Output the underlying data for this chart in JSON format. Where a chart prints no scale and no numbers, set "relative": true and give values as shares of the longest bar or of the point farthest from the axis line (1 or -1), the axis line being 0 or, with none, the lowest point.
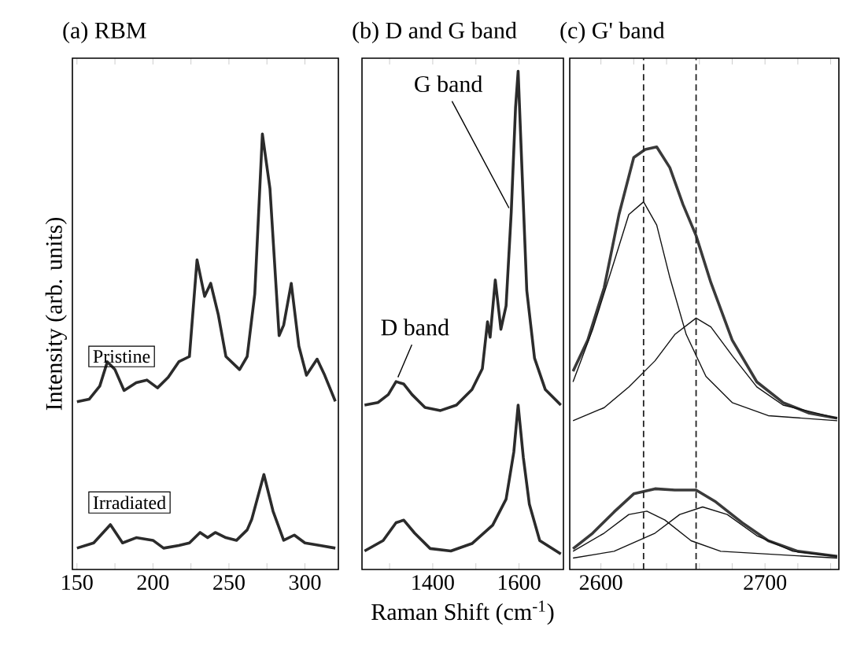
{
  "chart_data": [
    {
      "type": "line",
      "title": "(a) RBM",
      "ylabel": "Intensity (arb. units)",
      "relative": true,
      "xlim": [
        147,
        322
      ],
      "xticks": [
        150,
        {
          "value": 175,
          "label": null
        },
        200,
        {
          "value": 225,
          "label": null
        },
        250,
        {
          "value": 275,
          "label": null
        },
        300
      ],
      "series": [
        {
          "name": "Pristine",
          "color": "#2b2b2b",
          "x": [
            150,
            158,
            165,
            170,
            175,
            181,
            189,
            196,
            203,
            210,
            217,
            224,
            229,
            234,
            238,
            243,
            248,
            257,
            262,
            267,
            272,
            277,
            283,
            286,
            291,
            296,
            301,
            308,
            313,
            320
          ],
          "values": [
            0.385,
            0.391,
            0.421,
            0.477,
            0.459,
            0.411,
            0.429,
            0.435,
            0.417,
            0.441,
            0.477,
            0.489,
            0.711,
            0.627,
            0.657,
            0.585,
            0.489,
            0.459,
            0.489,
            0.633,
            1.0,
            0.874,
            0.537,
            0.561,
            0.657,
            0.513,
            0.446,
            0.483,
            0.446,
            0.386
          ]
        },
        {
          "name": "Irradiated",
          "color": "#2b2b2b",
          "x": [
            150,
            161,
            172,
            180,
            189,
            200,
            207,
            217,
            224,
            231,
            236,
            241,
            248,
            255,
            262,
            265,
            273,
            279,
            286,
            293,
            300,
            310,
            320
          ],
          "values": [
            0.049,
            0.061,
            0.103,
            0.061,
            0.073,
            0.067,
            0.049,
            0.055,
            0.061,
            0.085,
            0.073,
            0.085,
            0.073,
            0.067,
            0.091,
            0.115,
            0.218,
            0.134,
            0.067,
            0.079,
            0.061,
            0.055,
            0.049
          ]
        }
      ]
    },
    {
      "type": "line",
      "title": "(b) D and G band",
      "xlabel": "Raman Shift (cm$^{-1}$)",
      "relative": true,
      "xlim": [
        1236,
        1703
      ],
      "xticks": [
        {
          "value": 1300,
          "label": null
        },
        1400,
        {
          "value": 1500,
          "label": null
        },
        1600
      ],
      "annotations": [
        {
          "text": "D band",
          "x": 1315,
          "y": 0.377
        },
        {
          "text": "G band",
          "x": 1582,
          "y": 0.717
        }
      ],
      "series": [
        {
          "color": "#2b2b2b",
          "x": [
            1242,
            1273,
            1297,
            1315,
            1333,
            1352,
            1382,
            1418,
            1455,
            1491,
            1515,
            1527,
            1533,
            1545,
            1558,
            1570,
            1582,
            1592,
            1598,
            1606,
            1618,
            1636,
            1661,
            1697
          ],
          "values": [
            0.33,
            0.335,
            0.351,
            0.377,
            0.372,
            0.351,
            0.325,
            0.319,
            0.33,
            0.361,
            0.403,
            0.497,
            0.466,
            0.581,
            0.482,
            0.529,
            0.717,
            0.927,
            1.0,
            0.822,
            0.56,
            0.424,
            0.361,
            0.33
          ]
        },
        {
          "color": "#2b2b2b",
          "x": [
            1242,
            1285,
            1315,
            1333,
            1358,
            1394,
            1442,
            1491,
            1539,
            1570,
            1588,
            1598,
            1610,
            1624,
            1648,
            1697
          ],
          "values": [
            0.037,
            0.058,
            0.094,
            0.099,
            0.073,
            0.042,
            0.037,
            0.052,
            0.089,
            0.141,
            0.236,
            0.33,
            0.225,
            0.131,
            0.058,
            0.031
          ]
        }
      ]
    },
    {
      "type": "line",
      "title": "(c) G' band",
      "relative": true,
      "xlim": [
        2581,
        2745
      ],
      "xticks": [
        2600,
        {
          "value": 2620,
          "label": null
        },
        {
          "value": 2640,
          "label": null
        },
        {
          "value": 2660,
          "label": null
        },
        {
          "value": 2680,
          "label": null
        },
        2700,
        {
          "value": 2720,
          "label": null
        },
        {
          "value": 2740,
          "label": null
        }
      ],
      "ref_lines": [
        {
          "axis": "x",
          "value": 2626,
          "color": "#222222",
          "line_style": "dashed"
        },
        {
          "axis": "x",
          "value": 2658,
          "color": "#222222",
          "line_style": "dashed"
        }
      ],
      "series": [
        {
          "color": "#3a3a3a",
          "x": [
            2583,
            2592,
            2602,
            2611,
            2620,
            2627,
            2634,
            2642,
            2650,
            2658,
            2667,
            2680,
            2695,
            2711,
            2727,
            2744
          ],
          "values": [
            0.469,
            0.543,
            0.667,
            0.84,
            0.975,
            0.994,
            1.0,
            0.951,
            0.864,
            0.79,
            0.679,
            0.543,
            0.444,
            0.395,
            0.37,
            0.358
          ]
        },
        {
          "color": "#111111",
          "x": [
            2583,
            2595,
            2608,
            2617,
            2626,
            2634,
            2642,
            2652,
            2664,
            2680,
            2702,
            2744
          ],
          "values": [
            0.444,
            0.568,
            0.728,
            0.84,
            0.87,
            0.815,
            0.691,
            0.556,
            0.457,
            0.395,
            0.364,
            0.352
          ]
        },
        {
          "color": "#111111",
          "x": [
            2583,
            2602,
            2617,
            2633,
            2645,
            2658,
            2667,
            2680,
            2695,
            2711,
            2744
          ],
          "values": [
            0.352,
            0.383,
            0.432,
            0.494,
            0.556,
            0.595,
            0.574,
            0.506,
            0.432,
            0.389,
            0.358
          ]
        },
        {
          "color": "#3a3a3a",
          "x": [
            2583,
            2595,
            2608,
            2620,
            2633,
            2645,
            2658,
            2670,
            2686,
            2702,
            2720,
            2744
          ],
          "values": [
            0.049,
            0.086,
            0.136,
            0.179,
            0.191,
            0.188,
            0.188,
            0.16,
            0.111,
            0.068,
            0.043,
            0.031
          ]
        },
        {
          "color": "#111111",
          "x": [
            2583,
            2602,
            2617,
            2628,
            2639,
            2655,
            2673,
            2744
          ],
          "values": [
            0.043,
            0.086,
            0.13,
            0.138,
            0.117,
            0.068,
            0.043,
            0.027
          ]
        },
        {
          "color": "#111111",
          "x": [
            2583,
            2608,
            2633,
            2648,
            2662,
            2677,
            2695,
            2717,
            2744
          ],
          "values": [
            0.027,
            0.043,
            0.086,
            0.13,
            0.148,
            0.13,
            0.08,
            0.043,
            0.031
          ]
        }
      ]
    }
  ]
}
